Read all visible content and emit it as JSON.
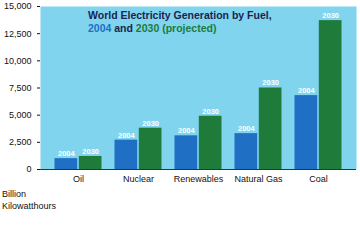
{
  "chart_data": {
    "type": "bar",
    "title": "World Electricity Generation by Fuel,",
    "subtitle": "2004 and 2030 (projected)",
    "y_label": "Billion Kilowatthours",
    "categories": [
      "Oil",
      "Nuclear",
      "Renewables",
      "Natural Gas",
      "Coal"
    ],
    "series": [
      {
        "name": "2004",
        "color": "#1f6fc5",
        "values": [
          1000,
          2700,
          3100,
          3300,
          6800
        ]
      },
      {
        "name": "2030",
        "color": "#1e7b3a",
        "values": [
          1200,
          3800,
          4900,
          7500,
          13700
        ]
      }
    ],
    "ylim": [
      0,
      15000
    ],
    "yticks": [
      0,
      {
        "value": 2500,
        "label": "2,500"
      },
      {
        "value": 5000,
        "label": "5,000"
      },
      {
        "value": 7500,
        "label": "7,500"
      },
      {
        "value": 10000,
        "label": "10,000"
      },
      {
        "value": 12500,
        "label": "12,500"
      },
      {
        "value": 15000,
        "label": "15,000"
      }
    ],
    "grid": false
  }
}
